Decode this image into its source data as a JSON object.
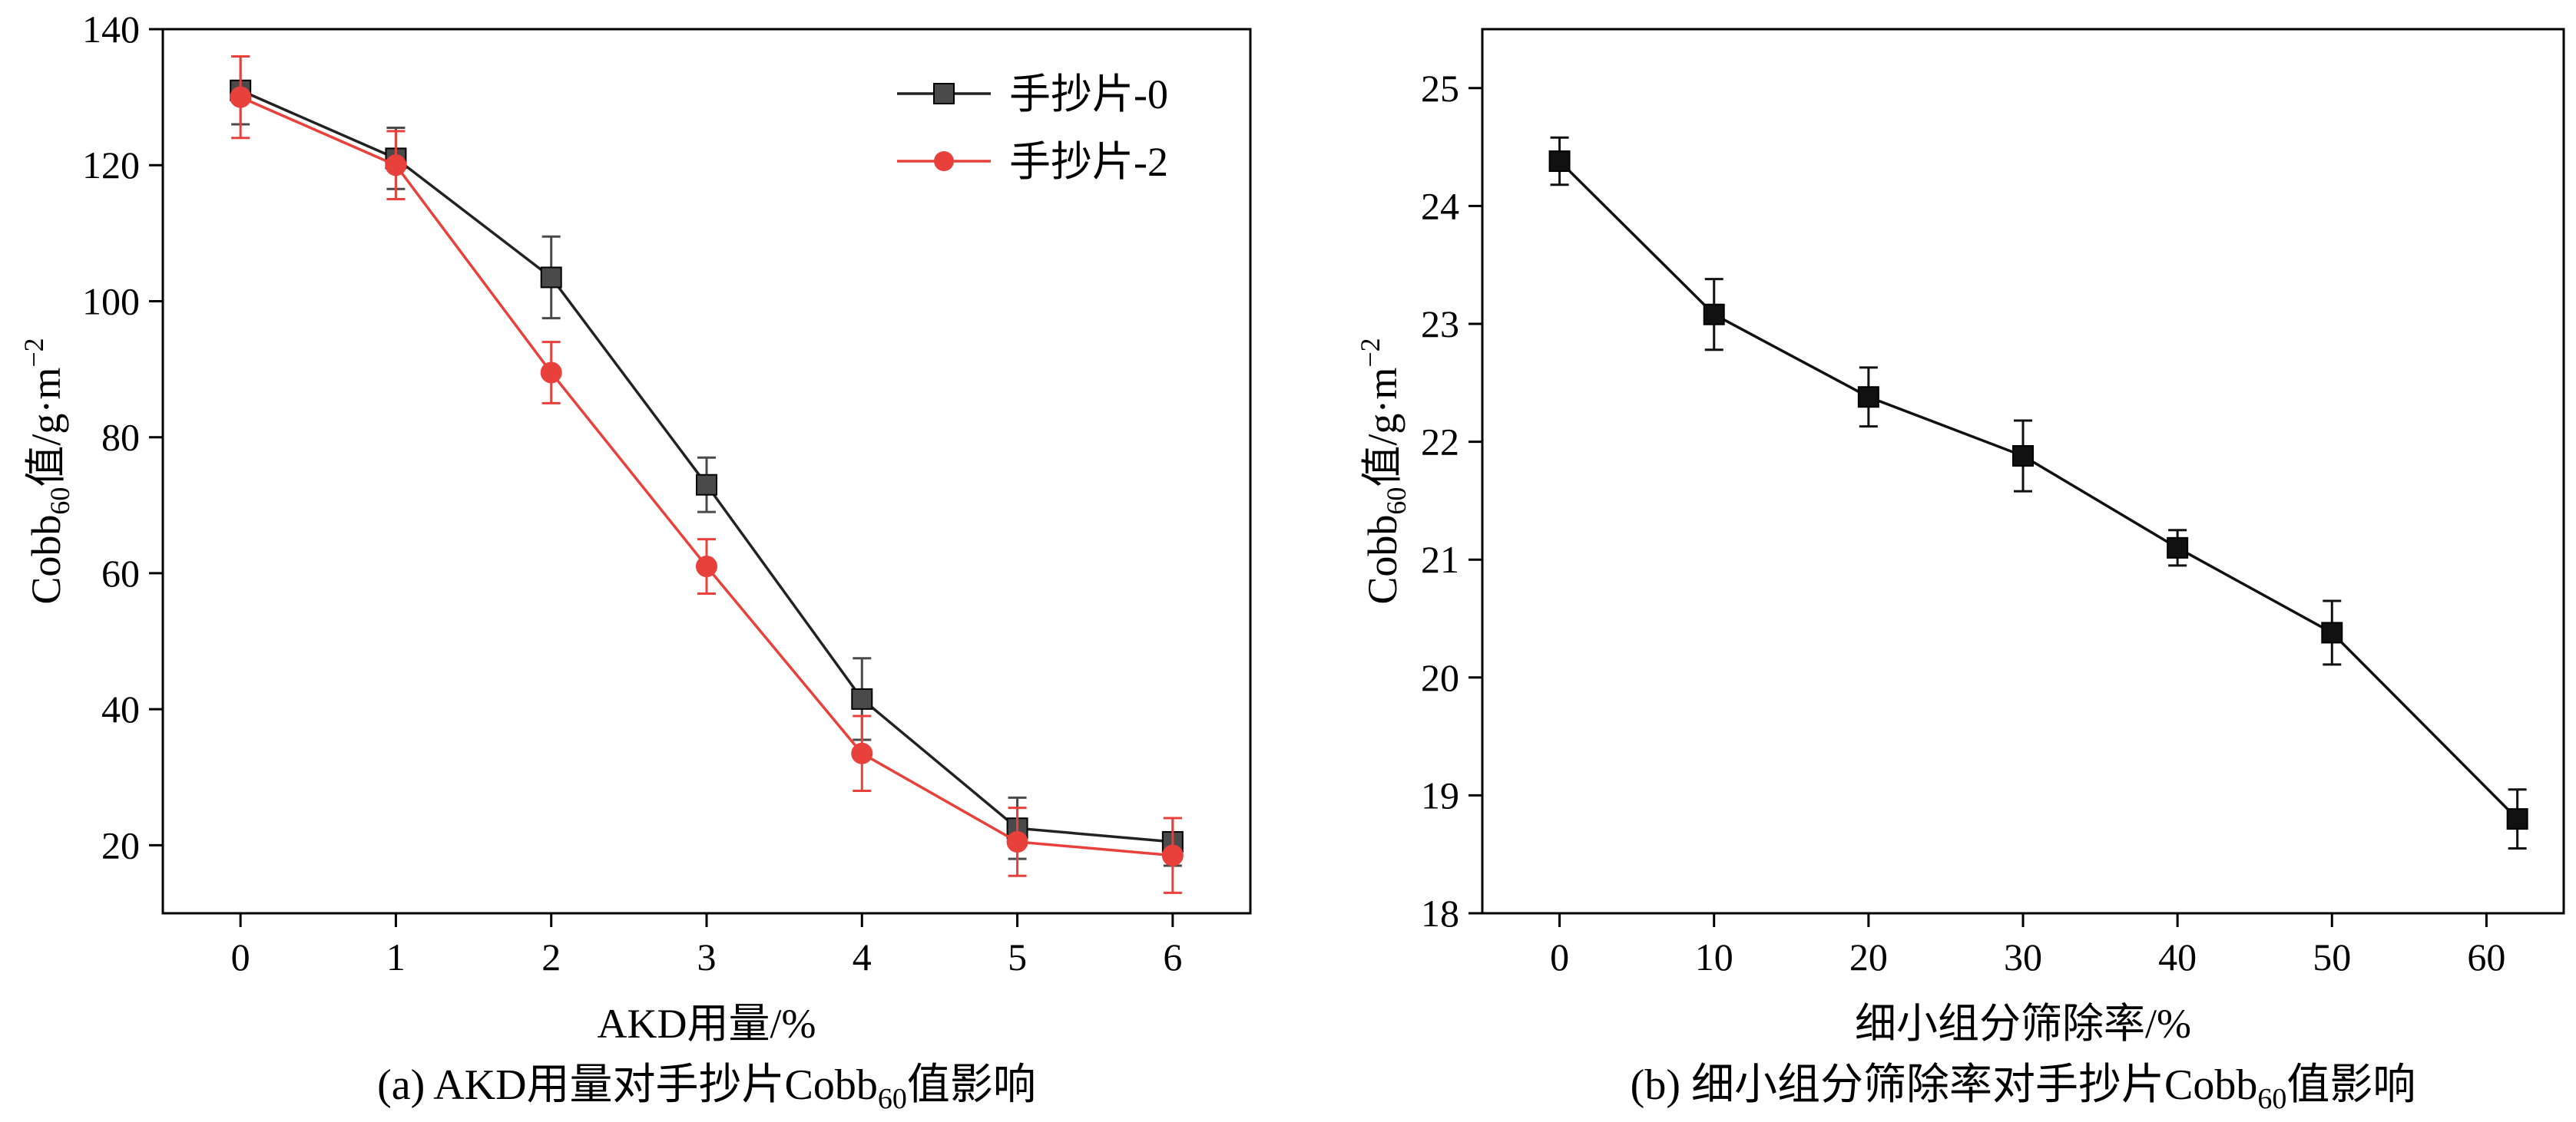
{
  "chart_data": [
    {
      "type": "line",
      "xlabel": "AKD用量/%",
      "ylabel_main": "Cobb",
      "ylabel_sub": "60",
      "ylabel_rest": "值/g·m",
      "ylabel_sup": "−2",
      "caption_main": "(a) AKD用量对手抄片Cobb",
      "caption_sub": "60",
      "caption_rest": "值影响",
      "xlim": [
        -0.5,
        6.5
      ],
      "ylim": [
        10,
        140
      ],
      "xticks": [
        0,
        1,
        2,
        3,
        4,
        5,
        6
      ],
      "yticks": [
        20,
        40,
        60,
        80,
        100,
        120,
        140
      ],
      "legend_position": "top-right",
      "series": [
        {
          "name": "手抄片-0",
          "color": "#222222",
          "marker_color": "#4a4a4a",
          "marker": "square",
          "x": [
            0,
            1,
            2,
            3,
            4,
            5,
            6
          ],
          "y": [
            131,
            121,
            103.5,
            73,
            41.5,
            22.5,
            20.5
          ],
          "err": [
            5,
            4.5,
            6,
            4,
            6,
            4.5,
            3.5
          ]
        },
        {
          "name": "手抄片-2",
          "color": "#e8413c",
          "marker_color": "#e8413c",
          "marker": "circle",
          "x": [
            0,
            1,
            2,
            3,
            4,
            5,
            6
          ],
          "y": [
            130,
            120,
            89.5,
            61,
            33.5,
            20.5,
            18.5
          ],
          "err": [
            6,
            5,
            4.5,
            4,
            5.5,
            5,
            5.5
          ]
        }
      ]
    },
    {
      "type": "line",
      "xlabel": "细小组分筛除率/%",
      "ylabel_main": "Cobb",
      "ylabel_sub": "60",
      "ylabel_rest": "值/g·m",
      "ylabel_sup": "−2",
      "caption_main": "(b) 细小组分筛除率对手抄片Cobb",
      "caption_sub": "60",
      "caption_rest": "值影响",
      "xlim": [
        -5,
        65
      ],
      "ylim": [
        18,
        25.5
      ],
      "xticks": [
        0,
        10,
        20,
        30,
        40,
        50,
        60
      ],
      "yticks": [
        18,
        19,
        20,
        21,
        22,
        23,
        24,
        25
      ],
      "series": [
        {
          "color": "#111111",
          "marker_color": "#111111",
          "marker": "square",
          "x": [
            0,
            10,
            20,
            30,
            40,
            50,
            62
          ],
          "y": [
            24.38,
            23.08,
            22.38,
            21.88,
            21.1,
            20.38,
            18.8
          ],
          "err": [
            0.2,
            0.3,
            0.25,
            0.3,
            0.15,
            0.27,
            0.25
          ]
        }
      ]
    }
  ]
}
